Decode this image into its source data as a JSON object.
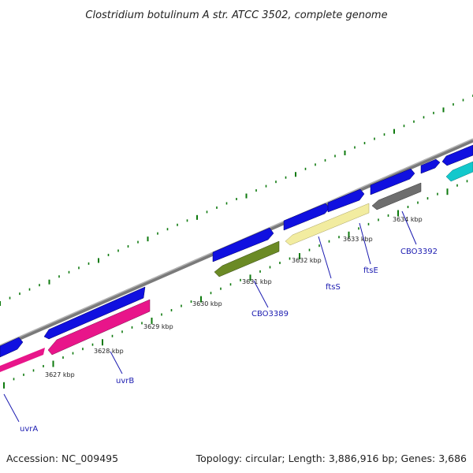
{
  "title": "Clostridium botulinum A str. ATCC 3502, complete genome",
  "footer": {
    "accession": "Accession: NC_009495",
    "summary": "Topology: circular; Length: 3,886,916 bp; Genes: 3,686"
  },
  "colors": {
    "background": "#ffffff",
    "backbone": "#8c8c8c",
    "tick": "#0e7a0e",
    "cds_blue": "#1010e0",
    "magenta": "#e8158a",
    "olive": "#6b8a25",
    "pale_yellow": "#f2eca0",
    "gray_gene": "#6e6e6e",
    "cyan": "#12c8cc",
    "label": "#1a1ab0"
  },
  "kbp_labels": [
    "3627 kbp",
    "3628 kbp",
    "3629 kbp",
    "3630 kbp",
    "3631 kbp",
    "3632 kbp",
    "3633 kbp",
    "3634 kbp"
  ],
  "gene_labels": [
    "uvrA",
    "uvrB",
    "CBO3389",
    "ftsS",
    "ftsE",
    "CBO3392"
  ]
}
